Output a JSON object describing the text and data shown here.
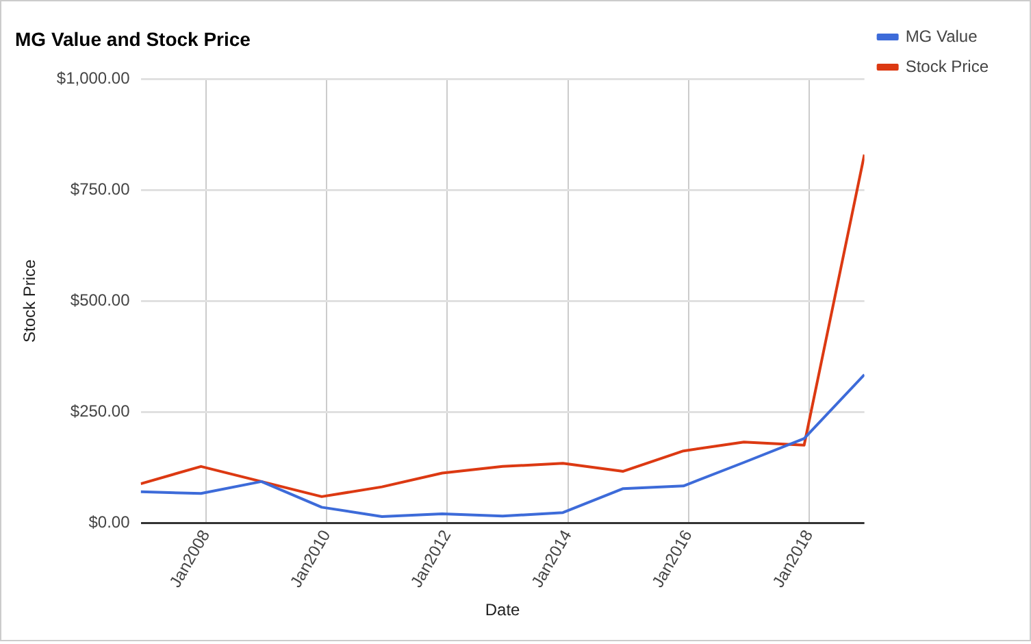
{
  "chart_data": {
    "type": "line",
    "title": "MG Value and Stock Price",
    "xlabel": "Date",
    "ylabel": "Stock Price",
    "x": [
      "2006-12",
      "2007-12",
      "2008-12",
      "2009-12",
      "2010-12",
      "2011-12",
      "2012-12",
      "2013-12",
      "2014-12",
      "2015-12",
      "2016-12",
      "2017-12",
      "2018-12"
    ],
    "series": [
      {
        "name": "MG Value",
        "color": "#3d6bd9",
        "values": [
          70,
          66,
          93,
          35,
          14,
          20,
          15,
          23,
          77,
          83,
          136,
          190,
          334
        ]
      },
      {
        "name": "Stock Price",
        "color": "#dc3912",
        "values": [
          88,
          127,
          93,
          59,
          81,
          112,
          127,
          134,
          116,
          162,
          182,
          175,
          830
        ]
      }
    ],
    "xlim": [
      "2006-12",
      "2018-12"
    ],
    "xticks": [
      {
        "value": "2008-01",
        "label": "Jan2008"
      },
      {
        "value": "2010-01",
        "label": "Jan2010"
      },
      {
        "value": "2012-01",
        "label": "Jan2012"
      },
      {
        "value": "2014-01",
        "label": "Jan2014"
      },
      {
        "value": "2016-01",
        "label": "Jan2016"
      },
      {
        "value": "2018-01",
        "label": "Jan2018"
      }
    ],
    "ylim": [
      0,
      1000
    ],
    "yticks": [
      {
        "value": 0,
        "label": "$0.00"
      },
      {
        "value": 250,
        "label": "$250.00"
      },
      {
        "value": 500,
        "label": "$500.00"
      },
      {
        "value": 750,
        "label": "$750.00"
      },
      {
        "value": 1000,
        "label": "$1,000.00"
      }
    ],
    "grid": true,
    "legend": "top right",
    "marker": "none",
    "line_style": "solid"
  }
}
